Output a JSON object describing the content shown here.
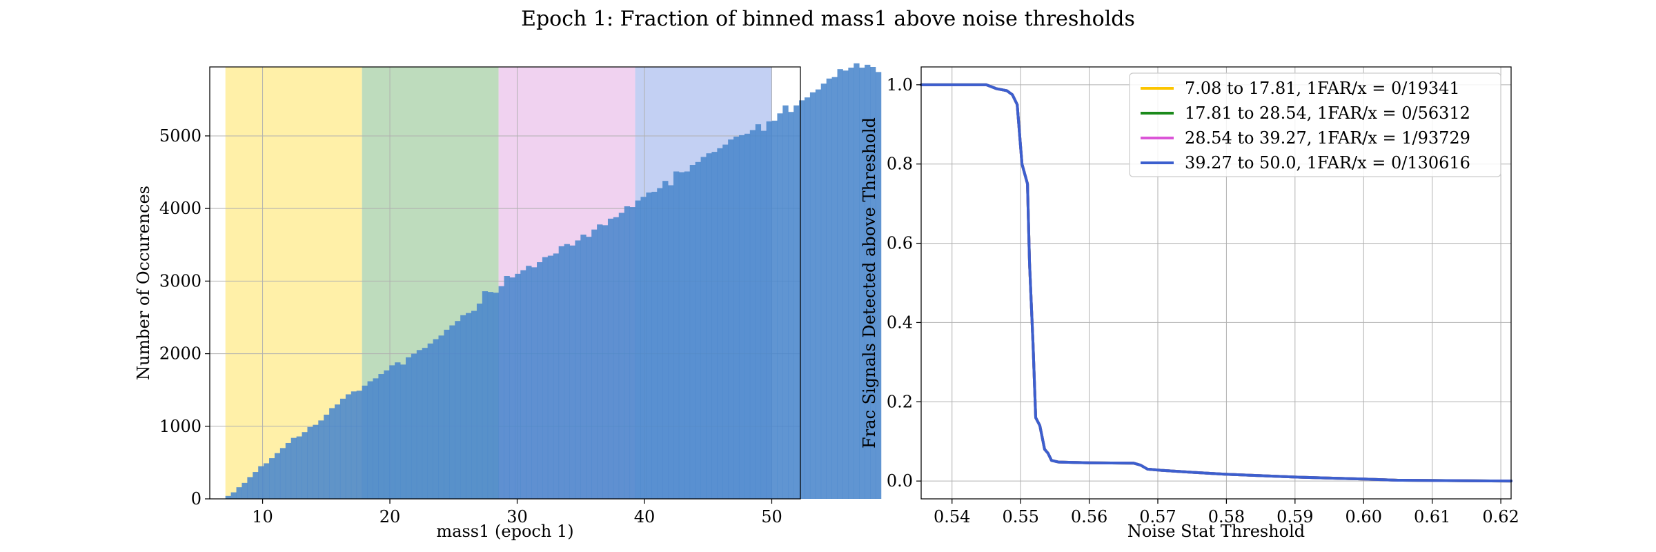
{
  "figure_title": "Epoch 1: Fraction of binned mass1 above noise thresholds",
  "colors": {
    "band_fill": [
      "#fff0a8",
      "#bedcbd",
      "#f0d2f0",
      "#c3d0f3"
    ],
    "hist_fill": "#4a86cc",
    "line_colors": [
      "#fcc500",
      "#1b8a1b",
      "#db55d7",
      "#3c5fce"
    ],
    "grid": "#b0b0b0"
  },
  "chart_data": [
    {
      "type": "bar",
      "subtype": "histogram",
      "xlabel": "mass1 (epoch 1)",
      "ylabel": "Number of Occurences",
      "xlim": [
        5.85,
        52.25
      ],
      "ylim": [
        0,
        5950
      ],
      "xticks": [
        10,
        20,
        30,
        40,
        50
      ],
      "yticks": [
        0,
        1000,
        2000,
        3000,
        4000,
        5000
      ],
      "grid": true,
      "bin_start": 7.08,
      "bin_width": 0.4292,
      "bands": [
        {
          "from": 7.08,
          "to": 17.81
        },
        {
          "from": 17.81,
          "to": 28.54
        },
        {
          "from": 28.54,
          "to": 39.27
        },
        {
          "from": 39.27,
          "to": 50.0
        }
      ],
      "values": [
        40,
        90,
        160,
        220,
        300,
        370,
        450,
        490,
        560,
        630,
        700,
        770,
        840,
        860,
        920,
        990,
        1020,
        1080,
        1160,
        1250,
        1300,
        1380,
        1440,
        1480,
        1490,
        1560,
        1620,
        1660,
        1720,
        1770,
        1840,
        1880,
        1850,
        1950,
        2000,
        2050,
        2080,
        2140,
        2200,
        2250,
        2330,
        2390,
        2450,
        2530,
        2560,
        2590,
        2690,
        2860,
        2850,
        2840,
        2930,
        3070,
        3050,
        3100,
        3150,
        3210,
        3190,
        3260,
        3330,
        3350,
        3380,
        3480,
        3510,
        3490,
        3560,
        3640,
        3610,
        3710,
        3780,
        3770,
        3860,
        3880,
        3940,
        4030,
        4020,
        4110,
        4160,
        4220,
        4230,
        4280,
        4380,
        4320,
        4510,
        4500,
        4510,
        4600,
        4640,
        4710,
        4760,
        4780,
        4830,
        4880,
        4950,
        4990,
        5010,
        5030,
        5080,
        5160,
        5070,
        5200,
        5210,
        5310,
        5420,
        5330,
        5420,
        5490,
        5530,
        5600,
        5640,
        5720,
        5790,
        5810,
        5920,
        5900,
        5940,
        6000,
        5940,
        5980,
        5950,
        5880
      ]
    },
    {
      "type": "line",
      "xlabel": "Noise Stat Threshold",
      "ylabel": "Frac Signals Detected above Threshold",
      "xlim": [
        0.5355,
        0.6215
      ],
      "ylim": [
        -0.045,
        1.045
      ],
      "xticks": [
        0.54,
        0.55,
        0.56,
        0.57,
        0.58,
        0.59,
        0.6,
        0.61,
        0.62
      ],
      "xtick_labels": [
        "0.54",
        "0.55",
        "0.56",
        "0.57",
        "0.58",
        "0.59",
        "0.60",
        "0.61",
        "0.62"
      ],
      "yticks": [
        0.0,
        0.2,
        0.4,
        0.6,
        0.8,
        1.0
      ],
      "ytick_labels": [
        "0.0",
        "0.2",
        "0.4",
        "0.6",
        "0.8",
        "1.0"
      ],
      "grid": true,
      "legend_position": "upper-right",
      "series": [
        {
          "name": "7.08 to 17.81, 1FAR/x = 0/19341",
          "x": [
            0.5355,
            0.545,
            0.5465,
            0.548,
            0.5488,
            0.5495,
            0.5502,
            0.551,
            0.5513,
            0.5518,
            0.5522,
            0.5528,
            0.5535,
            0.554,
            0.5545,
            0.5555,
            0.56,
            0.5665,
            0.5675,
            0.5685,
            0.5705,
            0.575,
            0.58,
            0.59,
            0.6,
            0.605,
            0.6215
          ],
          "y": [
            1.0,
            1.0,
            0.99,
            0.985,
            0.975,
            0.95,
            0.8,
            0.75,
            0.55,
            0.35,
            0.16,
            0.14,
            0.08,
            0.07,
            0.052,
            0.048,
            0.046,
            0.045,
            0.04,
            0.03,
            0.027,
            0.022,
            0.017,
            0.01,
            0.005,
            0.002,
            0.0
          ]
        },
        {
          "name": "17.81 to 28.54, 1FAR/x = 0/56312",
          "x": [
            0.5355,
            0.545,
            0.5465,
            0.548,
            0.5488,
            0.5495,
            0.5502,
            0.551,
            0.5513,
            0.5518,
            0.5522,
            0.5528,
            0.5535,
            0.554,
            0.5545,
            0.5555,
            0.56,
            0.5665,
            0.5675,
            0.5685,
            0.5705,
            0.575,
            0.58,
            0.59,
            0.6,
            0.605,
            0.6215
          ],
          "y": [
            1.0,
            1.0,
            0.99,
            0.985,
            0.975,
            0.95,
            0.8,
            0.75,
            0.55,
            0.35,
            0.16,
            0.14,
            0.08,
            0.07,
            0.052,
            0.048,
            0.046,
            0.045,
            0.04,
            0.03,
            0.027,
            0.022,
            0.017,
            0.01,
            0.005,
            0.002,
            0.0
          ]
        },
        {
          "name": "28.54 to 39.27, 1FAR/x = 1/93729",
          "x": [
            0.5355,
            0.545,
            0.5465,
            0.548,
            0.5488,
            0.5495,
            0.5502,
            0.551,
            0.5513,
            0.5518,
            0.5522,
            0.5528,
            0.5535,
            0.554,
            0.5545,
            0.5555,
            0.56,
            0.5665,
            0.5675,
            0.5685,
            0.5705,
            0.575,
            0.58,
            0.59,
            0.6,
            0.605,
            0.6215
          ],
          "y": [
            1.0,
            1.0,
            0.99,
            0.985,
            0.975,
            0.95,
            0.8,
            0.75,
            0.55,
            0.35,
            0.16,
            0.14,
            0.08,
            0.07,
            0.052,
            0.048,
            0.046,
            0.045,
            0.04,
            0.03,
            0.027,
            0.022,
            0.017,
            0.01,
            0.005,
            0.002,
            0.0
          ]
        },
        {
          "name": "39.27 to 50.0, 1FAR/x = 0/130616",
          "x": [
            0.5355,
            0.545,
            0.5465,
            0.548,
            0.5488,
            0.5495,
            0.5502,
            0.551,
            0.5513,
            0.5518,
            0.5522,
            0.5528,
            0.5535,
            0.554,
            0.5545,
            0.5555,
            0.56,
            0.5665,
            0.5675,
            0.5685,
            0.5705,
            0.575,
            0.58,
            0.59,
            0.6,
            0.605,
            0.6215
          ],
          "y": [
            1.0,
            1.0,
            0.99,
            0.985,
            0.975,
            0.95,
            0.8,
            0.75,
            0.55,
            0.35,
            0.16,
            0.14,
            0.08,
            0.07,
            0.052,
            0.048,
            0.046,
            0.045,
            0.04,
            0.03,
            0.027,
            0.022,
            0.017,
            0.01,
            0.005,
            0.002,
            0.0
          ]
        }
      ]
    }
  ]
}
